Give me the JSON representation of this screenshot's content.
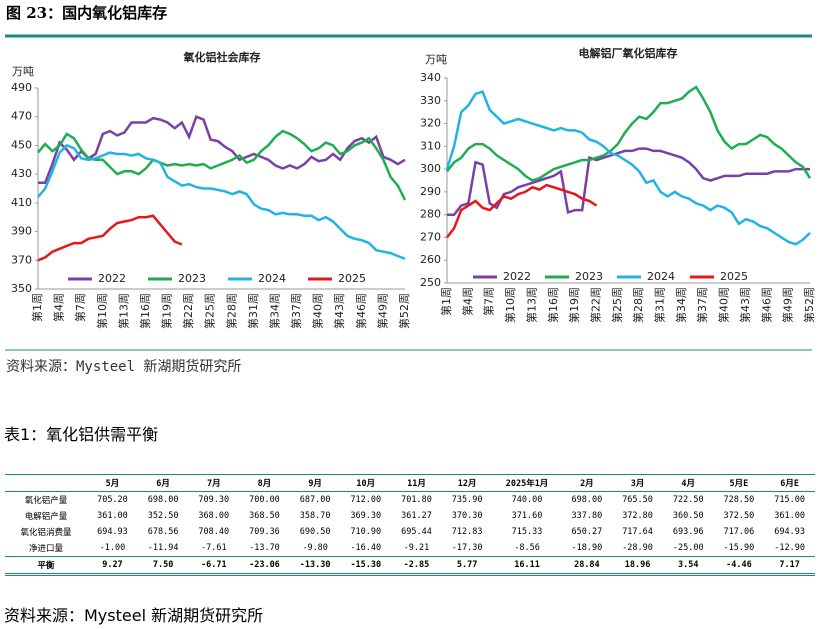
{
  "figure_title": "图 23：国内氧化铝库存",
  "chart_data": [
    {
      "type": "line",
      "title": "氧化铝社会库存",
      "ylabel": "万吨",
      "ylim": [
        350,
        490
      ],
      "yticks": [
        350,
        370,
        390,
        410,
        430,
        450,
        470,
        490
      ],
      "grid": false,
      "categories": [
        "第1周",
        null,
        null,
        "第4周",
        null,
        null,
        "第7周",
        null,
        null,
        "第10周",
        null,
        null,
        "第13周",
        null,
        null,
        "第16周",
        null,
        null,
        "第19周",
        null,
        null,
        "第22周",
        null,
        null,
        "第25周",
        null,
        null,
        "第28周",
        null,
        null,
        "第31周",
        null,
        null,
        "第34周",
        null,
        null,
        "第37周",
        null,
        null,
        "第40周",
        null,
        null,
        "第43周",
        null,
        null,
        "第46周",
        null,
        null,
        "第49周",
        null,
        null,
        "第52周"
      ],
      "series": [
        {
          "name": "2022",
          "color": "#7b3fa6",
          "values": [
            424,
            424,
            437,
            452,
            447,
            440,
            446,
            441,
            444,
            458,
            460,
            457,
            459,
            466,
            466,
            466,
            469,
            468,
            466,
            462,
            466,
            456,
            470,
            468,
            454,
            453,
            449,
            446,
            440,
            442,
            444,
            442,
            440,
            436,
            434,
            436,
            434,
            437,
            442,
            439,
            440,
            444,
            440,
            448,
            453,
            455,
            452,
            456,
            442,
            440,
            437,
            440
          ]
        },
        {
          "name": "2023",
          "color": "#1fae4f",
          "values": [
            445,
            451,
            446,
            450,
            458,
            455,
            447,
            441,
            440,
            440,
            435,
            430,
            432,
            432,
            430,
            434,
            440,
            438,
            436,
            437,
            436,
            437,
            436,
            437,
            434,
            436,
            438,
            440,
            443,
            438,
            440,
            446,
            450,
            456,
            460,
            458,
            455,
            451,
            446,
            448,
            452,
            450,
            444,
            446,
            450,
            452,
            455,
            448,
            440,
            428,
            422,
            412
          ]
        },
        {
          "name": "2024",
          "color": "#22b3e6",
          "values": [
            414,
            420,
            432,
            445,
            450,
            448,
            441,
            440,
            441,
            443,
            445,
            444,
            444,
            443,
            444,
            441,
            440,
            438,
            428,
            425,
            422,
            423,
            421,
            420,
            420,
            419,
            418,
            416,
            418,
            416,
            409,
            406,
            405,
            402,
            403,
            402,
            402,
            401,
            401,
            398,
            400,
            397,
            392,
            387,
            385,
            384,
            382,
            377,
            376,
            375,
            373,
            371
          ]
        },
        {
          "name": "2025",
          "color": "#e8161b",
          "values": [
            370,
            372,
            376,
            378,
            380,
            382,
            382,
            385,
            386,
            387,
            392,
            396,
            397,
            398,
            400,
            400,
            401,
            395,
            389,
            383,
            381,
            null,
            null,
            null,
            null,
            null,
            null,
            null,
            null,
            null,
            null,
            null,
            null,
            null,
            null,
            null,
            null,
            null,
            null,
            null,
            null,
            null,
            null,
            null,
            null,
            null,
            null,
            null,
            null,
            null,
            null,
            null
          ]
        }
      ]
    },
    {
      "type": "line",
      "title": "电解铝厂氧化铝库存",
      "ylabel": "万吨",
      "ylim": [
        250,
        340
      ],
      "yticks": [
        250,
        260,
        270,
        280,
        290,
        300,
        310,
        320,
        330,
        340
      ],
      "grid": false,
      "categories": [
        "第1周",
        null,
        null,
        "第4周",
        null,
        null,
        "第7周",
        null,
        null,
        "第10周",
        null,
        null,
        "第13周",
        null,
        null,
        "第16周",
        null,
        null,
        "第19周",
        null,
        null,
        "第22周",
        null,
        null,
        "第25周",
        null,
        null,
        "第28周",
        null,
        null,
        "第31周",
        null,
        null,
        "第34周",
        null,
        null,
        "第37周",
        null,
        null,
        "第40周",
        null,
        null,
        "第43周",
        null,
        null,
        "第46周",
        null,
        null,
        "第49周",
        null,
        null,
        "第52周"
      ],
      "series": [
        {
          "name": "2022",
          "color": "#7b3fa6",
          "values": [
            280,
            280,
            284,
            285,
            303,
            302,
            285,
            283,
            289,
            290,
            292,
            293,
            294,
            295,
            296,
            297,
            299,
            281,
            282,
            282,
            305,
            304,
            305,
            306,
            307,
            308,
            308,
            309,
            309,
            308,
            308,
            307,
            306,
            305,
            303,
            300,
            296,
            295,
            296,
            297,
            297,
            297,
            298,
            298,
            298,
            298,
            299,
            299,
            299,
            300,
            300,
            300
          ]
        },
        {
          "name": "2023",
          "color": "#1fae4f",
          "values": [
            299,
            303,
            305,
            309,
            311,
            311,
            309,
            306,
            304,
            302,
            300,
            297,
            295,
            296,
            298,
            300,
            301,
            302,
            303,
            304,
            304,
            305,
            306,
            308,
            311,
            316,
            320,
            323,
            322,
            325,
            329,
            329,
            330,
            331,
            334,
            336,
            331,
            325,
            317,
            312,
            309,
            311,
            311,
            313,
            315,
            314,
            311,
            309,
            306,
            303,
            301,
            296
          ]
        },
        {
          "name": "2024",
          "color": "#22b3e6",
          "values": [
            300,
            310,
            325,
            328,
            333,
            334,
            326,
            323,
            320,
            321,
            322,
            321,
            320,
            319,
            318,
            317,
            318,
            317,
            317,
            316,
            313,
            312,
            310,
            307,
            306,
            304,
            302,
            299,
            294,
            295,
            290,
            288,
            290,
            288,
            287,
            285,
            284,
            282,
            284,
            283,
            281,
            276,
            278,
            277,
            275,
            274,
            272,
            270,
            268,
            267,
            269,
            272
          ]
        },
        {
          "name": "2025",
          "color": "#e8161b",
          "values": [
            270,
            274,
            282,
            284,
            286,
            283,
            282,
            285,
            288,
            287,
            289,
            290,
            292,
            291,
            293,
            292,
            291,
            290,
            289,
            287,
            286,
            284,
            null,
            null,
            null,
            null,
            null,
            null,
            null,
            null,
            null,
            null,
            null,
            null,
            null,
            null,
            null,
            null,
            null,
            null,
            null,
            null,
            null,
            null,
            null,
            null,
            null,
            null,
            null,
            null,
            null,
            null
          ]
        }
      ]
    }
  ],
  "source": "资料来源：Mysteel 新湖期货研究所",
  "table_title": "表1：氧化铝供需平衡",
  "table": {
    "columns": [
      "5月",
      "6月",
      "7月",
      "8月",
      "9月",
      "10月",
      "11月",
      "12月",
      "2025年1月",
      "2月",
      "3月",
      "4月",
      "5月E",
      "6月E"
    ],
    "rows": [
      [
        "氧化铝产量",
        "705.20",
        "698.00",
        "709.30",
        "700.00",
        "687.00",
        "712.00",
        "701.80",
        "735.90",
        "740.00",
        "698.00",
        "765.50",
        "722.50",
        "728.50",
        "715.00"
      ],
      [
        "电解铝产量",
        "361.00",
        "352.50",
        "368.00",
        "368.50",
        "358.70",
        "369.30",
        "361.27",
        "370.30",
        "371.60",
        "337.80",
        "372.80",
        "360.50",
        "372.50",
        "361.00"
      ],
      [
        "氧化铝消费量",
        "694.93",
        "678.56",
        "708.40",
        "709.36",
        "690.50",
        "710.90",
        "695.44",
        "712.83",
        "715.33",
        "650.27",
        "717.64",
        "693.96",
        "717.06",
        "694.93"
      ],
      [
        "净进口量",
        "-1.00",
        "-11.94",
        "-7.61",
        "-13.70",
        "-9.80",
        "-16.40",
        "-9.21",
        "-17.30",
        "-8.56",
        "-18.90",
        "-28.90",
        "-25.00",
        "-15.90",
        "-12.90"
      ],
      [
        "平衡",
        "9.27",
        "7.50",
        "-6.71",
        "-23.06",
        "-13.30",
        "-15.30",
        "-2.85",
        "5.77",
        "16.11",
        "28.84",
        "18.96",
        "3.54",
        "-4.46",
        "7.17"
      ]
    ]
  },
  "table_source": "资料来源：Mysteel 新湖期货研究所"
}
